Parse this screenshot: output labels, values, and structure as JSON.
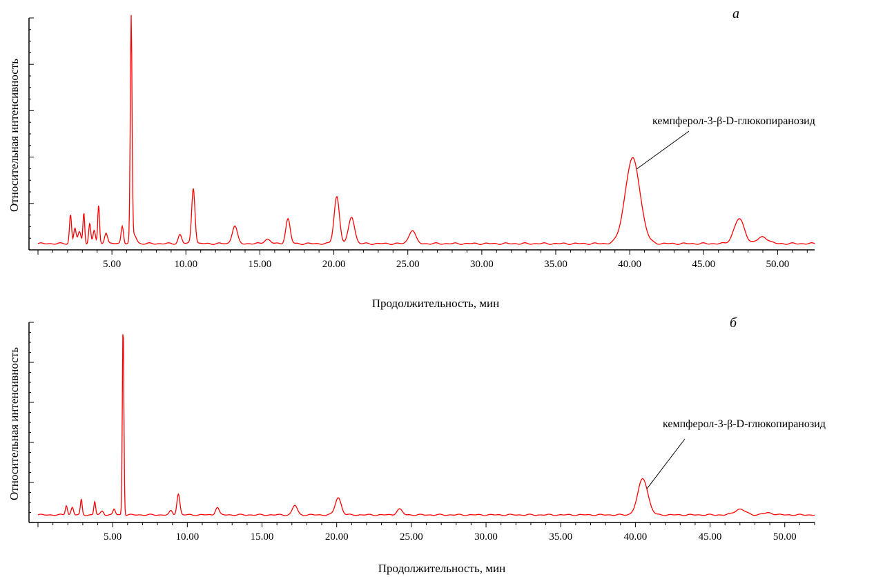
{
  "chart_data": [
    {
      "type": "line",
      "panel_label": "а",
      "xlabel": "Продолжительность, мин",
      "ylabel": "Относительная интенсивность",
      "xlim": [
        0.0,
        52.5
      ],
      "ylim": [
        0,
        1
      ],
      "x_ticks": [
        "5.00",
        "10.00",
        "15.00",
        "20.00",
        "25.00",
        "30.00",
        "35.00",
        "40.00",
        "45.00",
        "50.00"
      ],
      "x_tick_values": [
        5,
        10,
        15,
        20,
        25,
        30,
        35,
        40,
        45,
        50
      ],
      "y_tick_labels_shown": false,
      "line_color": "#ff0000",
      "annotation": {
        "text": "кемпферол-3-β-D-глюкопиранозид",
        "x": 40.2,
        "y": 0.37
      },
      "baseline": 0.0,
      "peaks": [
        {
          "x": 2.2,
          "height": 0.13,
          "width": 0.07
        },
        {
          "x": 2.5,
          "height": 0.07,
          "width": 0.08
        },
        {
          "x": 2.8,
          "height": 0.05,
          "width": 0.1
        },
        {
          "x": 3.1,
          "height": 0.14,
          "width": 0.06
        },
        {
          "x": 3.5,
          "height": 0.09,
          "width": 0.07
        },
        {
          "x": 3.8,
          "height": 0.06,
          "width": 0.08
        },
        {
          "x": 4.1,
          "height": 0.17,
          "width": 0.06
        },
        {
          "x": 4.6,
          "height": 0.05,
          "width": 0.1
        },
        {
          "x": 5.7,
          "height": 0.08,
          "width": 0.08
        },
        {
          "x": 6.3,
          "height": 1.0,
          "width": 0.06
        },
        {
          "x": 6.5,
          "height": 0.04,
          "width": 0.15
        },
        {
          "x": 9.6,
          "height": 0.04,
          "width": 0.12
        },
        {
          "x": 10.5,
          "height": 0.25,
          "width": 0.11
        },
        {
          "x": 13.3,
          "height": 0.08,
          "width": 0.17
        },
        {
          "x": 15.5,
          "height": 0.02,
          "width": 0.2
        },
        {
          "x": 16.9,
          "height": 0.11,
          "width": 0.15
        },
        {
          "x": 20.2,
          "height": 0.21,
          "width": 0.18
        },
        {
          "x": 21.2,
          "height": 0.12,
          "width": 0.2
        },
        {
          "x": 25.3,
          "height": 0.06,
          "width": 0.22
        },
        {
          "x": 40.2,
          "height": 0.38,
          "width": 0.5
        },
        {
          "x": 47.4,
          "height": 0.11,
          "width": 0.35
        },
        {
          "x": 49.0,
          "height": 0.03,
          "width": 0.35
        }
      ]
    },
    {
      "type": "line",
      "panel_label": "б",
      "xlabel": "Продолжительность, мин",
      "ylabel": "Относительная интенсивность",
      "xlim": [
        0.0,
        52.0
      ],
      "ylim": [
        0,
        1
      ],
      "x_ticks": [
        "5.00",
        "10.00",
        "15.00",
        "20.00",
        "25.00",
        "30.00",
        "35.00",
        "40.00",
        "45.00",
        "50.00"
      ],
      "x_tick_values": [
        5,
        10,
        15,
        20,
        25,
        30,
        35,
        40,
        45,
        50
      ],
      "y_tick_labels_shown": false,
      "line_color": "#ff0000",
      "annotation": {
        "text": "кемпферол-3-β-D-глюкопиранозид",
        "x": 40.5,
        "y": 0.18
      },
      "baseline": 0.0,
      "peaks": [
        {
          "x": 1.9,
          "height": 0.05,
          "width": 0.07
        },
        {
          "x": 2.3,
          "height": 0.04,
          "width": 0.08
        },
        {
          "x": 2.9,
          "height": 0.08,
          "width": 0.06
        },
        {
          "x": 3.8,
          "height": 0.07,
          "width": 0.06
        },
        {
          "x": 4.3,
          "height": 0.02,
          "width": 0.1
        },
        {
          "x": 5.1,
          "height": 0.03,
          "width": 0.08
        },
        {
          "x": 5.7,
          "height": 1.0,
          "width": 0.05
        },
        {
          "x": 8.9,
          "height": 0.02,
          "width": 0.1
        },
        {
          "x": 9.4,
          "height": 0.11,
          "width": 0.1
        },
        {
          "x": 12.0,
          "height": 0.04,
          "width": 0.12
        },
        {
          "x": 17.2,
          "height": 0.05,
          "width": 0.16
        },
        {
          "x": 20.1,
          "height": 0.09,
          "width": 0.2
        },
        {
          "x": 24.2,
          "height": 0.03,
          "width": 0.18
        },
        {
          "x": 40.5,
          "height": 0.19,
          "width": 0.33
        },
        {
          "x": 47.0,
          "height": 0.03,
          "width": 0.35
        },
        {
          "x": 48.9,
          "height": 0.01,
          "width": 0.35
        }
      ]
    }
  ]
}
